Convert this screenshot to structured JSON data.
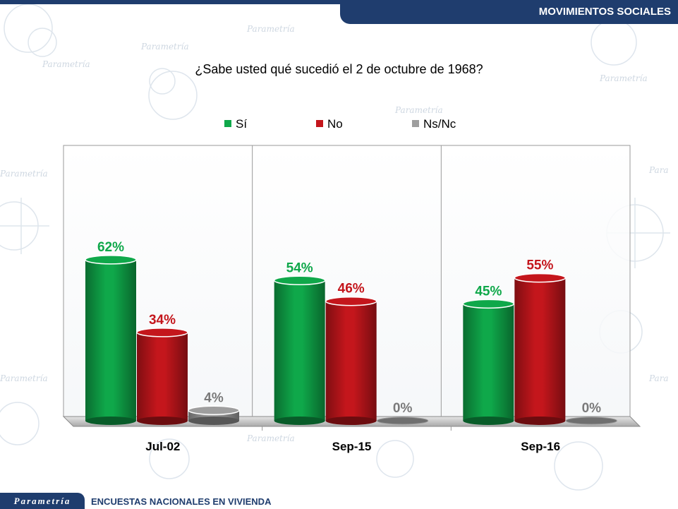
{
  "header": {
    "section_title": "MOVIMIENTOS SOCIALES"
  },
  "question": "¿Sabe usted qué sucedió el 2 de octubre de 1968?",
  "footer": {
    "logo": "Parametría",
    "text": "ENCUESTAS NACIONALES EN VIVIENDA"
  },
  "colors": {
    "si": "#0fa84a",
    "no": "#c4161c",
    "nsnc": "#9e9e9e",
    "brand": "#1f3d6e"
  },
  "chart_data": {
    "type": "bar",
    "title": "¿Sabe usted qué sucedió el 2 de octubre de 1968?",
    "categories": [
      "Jul-02",
      "Sep-15",
      "Sep-16"
    ],
    "series": [
      {
        "name": "Sí",
        "values": [
          62,
          54,
          45
        ],
        "labels": [
          "62%",
          "54%",
          "45%"
        ]
      },
      {
        "name": "No",
        "values": [
          34,
          46,
          55
        ],
        "labels": [
          "34%",
          "46%",
          "55%"
        ]
      },
      {
        "name": "Ns/Nc",
        "values": [
          4,
          0,
          0
        ],
        "labels": [
          "4%",
          "0%",
          "0%"
        ]
      }
    ],
    "ylim": [
      0,
      100
    ],
    "legend": "top",
    "grid": false
  }
}
